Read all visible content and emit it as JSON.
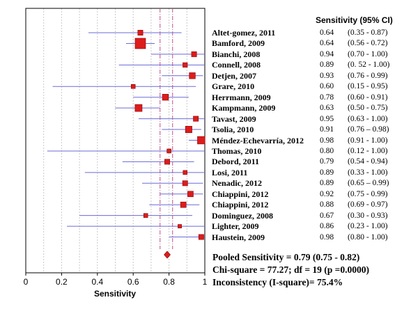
{
  "chart_data": {
    "type": "forest",
    "header": "Sensitivity (95% CI)",
    "xlabel": "Sensitivity",
    "xlim": [
      0,
      1
    ],
    "xticks": [
      "0",
      "0.2",
      "0.4",
      "0.6",
      "0.8",
      "1"
    ],
    "x_tick_values": [
      0,
      0.2,
      0.4,
      0.6,
      0.8,
      1
    ],
    "pooled_estimate": 0.79,
    "pooled_ci": [
      0.75,
      0.82
    ],
    "studies": [
      {
        "name": "Altet-gomez, 2011",
        "sens": 0.64,
        "lo": 0.35,
        "hi": 0.87,
        "sens_text": "0.64",
        "ci_text": "(0.35 - 0.87)",
        "weight": 0.9
      },
      {
        "name": "Bamford, 2009",
        "sens": 0.64,
        "lo": 0.56,
        "hi": 0.72,
        "sens_text": "0.64",
        "ci_text": "(0.56 - 0.72)",
        "weight": 2.0
      },
      {
        "name": "Bianchi, 2008",
        "sens": 0.94,
        "lo": 0.7,
        "hi": 1.0,
        "sens_text": "0.94",
        "ci_text": "(0.70 - 1.00)",
        "weight": 0.9
      },
      {
        "name": "Connell, 2008",
        "sens": 0.89,
        "lo": 0.52,
        "hi": 1.0,
        "sens_text": "0.89",
        "ci_text": "(0. 52 - 1.00)",
        "weight": 0.8
      },
      {
        "name": "Detjen, 2007",
        "sens": 0.93,
        "lo": 0.76,
        "hi": 0.99,
        "sens_text": "0.93",
        "ci_text": "(0.76 - 0.99)",
        "weight": 1.1
      },
      {
        "name": "Grare, 2010",
        "sens": 0.6,
        "lo": 0.15,
        "hi": 0.95,
        "sens_text": "0.60",
        "ci_text": "(0.15 - 0.95)",
        "weight": 0.7
      },
      {
        "name": "Herrmann, 2009",
        "sens": 0.78,
        "lo": 0.6,
        "hi": 0.91,
        "sens_text": "0.78",
        "ci_text": "(0.60 - 0.91)",
        "weight": 1.1
      },
      {
        "name": "Kampmann, 2009",
        "sens": 0.63,
        "lo": 0.5,
        "hi": 0.75,
        "sens_text": "0.63",
        "ci_text": "(0.50 - 0.75)",
        "weight": 1.3
      },
      {
        "name": "Tavast, 2009",
        "sens": 0.95,
        "lo": 0.63,
        "hi": 1.0,
        "sens_text": "0.95",
        "ci_text": "(0.63 - 1.00)",
        "weight": 0.9
      },
      {
        "name": "Tsolia, 2010",
        "sens": 0.91,
        "lo": 0.76,
        "hi": 0.98,
        "sens_text": "0.91",
        "ci_text": "(0.76 – 0.98)",
        "weight": 1.2
      },
      {
        "name": "Méndez-Echevarría, 2012",
        "sens": 0.98,
        "lo": 0.91,
        "hi": 1.0,
        "sens_text": "0.98",
        "ci_text": "(0.91 - 1.00)",
        "weight": 1.4
      },
      {
        "name": "Thomas, 2010",
        "sens": 0.8,
        "lo": 0.12,
        "hi": 1.0,
        "sens_text": "0.80",
        "ci_text": "(0.12 - 1.00)",
        "weight": 0.7
      },
      {
        "name": "Debord, 2011",
        "sens": 0.79,
        "lo": 0.54,
        "hi": 0.94,
        "sens_text": "0.79",
        "ci_text": "(0.54 - 0.94)",
        "weight": 0.9
      },
      {
        "name": "Losi, 2011",
        "sens": 0.89,
        "lo": 0.33,
        "hi": 1.0,
        "sens_text": "0.89",
        "ci_text": "(0.33 - 1.00)",
        "weight": 0.7
      },
      {
        "name": "Nenadic, 2012",
        "sens": 0.89,
        "lo": 0.65,
        "hi": 0.99,
        "sens_text": "0.89",
        "ci_text": "(0.65 – 0.99)",
        "weight": 0.9
      },
      {
        "name": "Chiappini, 2012",
        "sens": 0.92,
        "lo": 0.75,
        "hi": 0.99,
        "sens_text": "0.92",
        "ci_text": "(0.75 - 0.99)",
        "weight": 1.0
      },
      {
        "name": "Chiappini, 2012",
        "sens": 0.88,
        "lo": 0.69,
        "hi": 0.97,
        "sens_text": "0.88",
        "ci_text": "(0.69 - 0.97)",
        "weight": 1.0
      },
      {
        "name": "Dominguez, 2008",
        "sens": 0.67,
        "lo": 0.3,
        "hi": 0.93,
        "sens_text": "0.67",
        "ci_text": "(0.30 - 0.93)",
        "weight": 0.7
      },
      {
        "name": "Lighter, 2009",
        "sens": 0.86,
        "lo": 0.23,
        "hi": 1.0,
        "sens_text": "0.86",
        "ci_text": "(0.23 - 1.00)",
        "weight": 0.6
      },
      {
        "name": "Haustein, 2009",
        "sens": 0.98,
        "lo": 0.8,
        "hi": 1.0,
        "sens_text": "0.98",
        "ci_text": "(0.80 - 1.00)",
        "weight": 0.9
      }
    ],
    "summary": {
      "pooled": "Pooled Sensitivity = 0.79    (0.75 - 0.82)",
      "chi": "Chi-square  = 77.27; df = 19 (p =0.0000)",
      "inconsistency": "Inconsistency (I-square)= 75.4%"
    },
    "colors": {
      "marker": "#dd1c1c",
      "marker_edge": "#8b0000",
      "ci_line": "#6a6ad8",
      "ref_line": "#c0508a",
      "grid": "#c8c8c8"
    }
  }
}
